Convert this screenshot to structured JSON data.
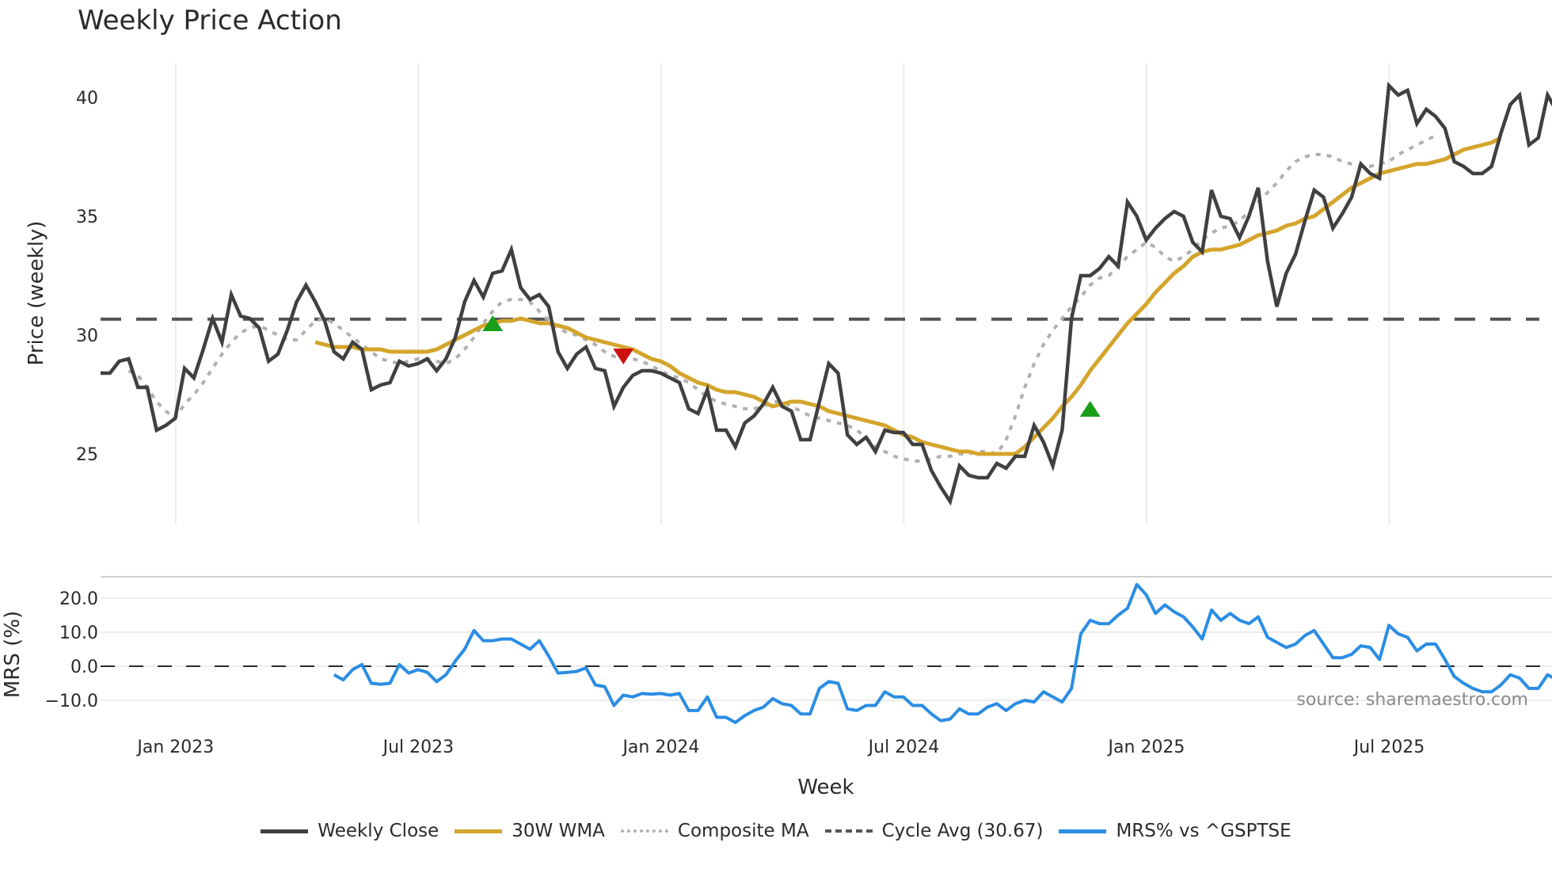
{
  "title": "Weekly Price Action",
  "colors": {
    "weekly_close": "#404040",
    "wma": "#d4a52c",
    "composite": "#b0b0b0",
    "cycle_avg": "#555555",
    "mrs": "#2b8de3",
    "buy_marker": "#1a9e1a",
    "sell_marker": "#cc1111",
    "grid": "#ececec"
  },
  "price_panel": {
    "ylabel": "Price (weekly)",
    "yticks": [
      "25",
      "30",
      "35",
      "40"
    ]
  },
  "mrs_panel": {
    "ylabel": "MRS (%)",
    "yticks": [
      "-10.0",
      "0.0",
      "10.0",
      "20.0"
    ]
  },
  "xaxis": {
    "label": "Week",
    "ticks": [
      "Jan 2023",
      "Jul 2023",
      "Jan 2024",
      "Jul 2024",
      "Jan 2025",
      "Jul 2025"
    ]
  },
  "source_text": "source: sharemaestro.com",
  "legend": {
    "weekly_close": "Weekly Close",
    "wma": "30W WMA",
    "composite": "Composite MA",
    "cycle_avg": "Cycle Avg (30.67)",
    "mrs": "MRS% vs ^GSPTSE"
  },
  "chart_data": [
    {
      "type": "line",
      "title": "Weekly Price Action",
      "xlabel": "Week",
      "ylabel": "Price (weekly)",
      "ylim": [
        22.0,
        41.4
      ],
      "x_ticks": [
        "Jan 2023",
        "Jul 2023",
        "Jan 2024",
        "Jul 2024",
        "Jan 2025",
        "Jul 2025"
      ],
      "x_start_week_index_of_jan2023": 8,
      "grid": true,
      "legend_position": "bottom",
      "series": [
        {
          "name": "Weekly Close",
          "start_index": 0,
          "values": [
            28.4,
            28.4,
            28.9,
            29.0,
            27.8,
            27.8,
            26.0,
            26.2,
            26.5,
            28.6,
            28.2,
            29.4,
            30.7,
            29.7,
            31.7,
            30.8,
            30.7,
            30.3,
            28.9,
            29.2,
            30.2,
            31.4,
            32.1,
            31.4,
            30.6,
            29.3,
            29.0,
            29.7,
            29.4,
            27.7,
            27.9,
            28.0,
            28.9,
            28.7,
            28.8,
            29.0,
            28.5,
            29.0,
            29.9,
            31.4,
            32.3,
            31.6,
            32.6,
            32.7,
            33.6,
            32.0,
            31.5,
            31.7,
            31.2,
            29.3,
            28.6,
            29.2,
            29.5,
            28.6,
            28.5,
            27.0,
            27.8,
            28.3,
            28.5,
            28.5,
            28.4,
            28.2,
            28.0,
            26.9,
            26.7,
            27.7,
            26.0,
            26.0,
            25.3,
            26.3,
            26.6,
            27.1,
            27.8,
            27.0,
            26.8,
            25.6,
            25.6,
            27.2,
            28.8,
            28.4,
            25.8,
            25.4,
            25.7,
            25.1,
            26.0,
            25.9,
            25.9,
            25.4,
            25.4,
            24.3,
            23.6,
            23.0,
            24.5,
            24.1,
            24.0,
            24.0,
            24.6,
            24.4,
            24.9,
            24.9,
            26.2,
            25.5,
            24.5,
            26.0,
            30.7,
            32.5,
            32.5,
            32.8,
            33.3,
            32.9,
            35.6,
            35.0,
            34.0,
            34.5,
            34.9,
            35.2,
            35.0,
            33.9,
            33.5,
            36.1,
            35.0,
            34.9,
            34.1,
            35.0,
            36.2,
            33.1,
            31.2,
            32.6,
            33.4,
            34.8,
            36.1,
            35.8,
            34.5,
            35.1,
            35.8,
            37.2,
            36.8,
            36.6,
            40.5,
            40.1,
            40.3,
            38.9,
            39.5,
            39.2,
            38.7,
            37.3,
            37.1,
            36.8,
            36.8,
            37.1,
            38.5,
            39.7,
            40.1,
            38.0,
            38.3,
            40.1,
            39.4
          ]
        },
        {
          "name": "30W WMA",
          "start_index": 23,
          "values": [
            29.7,
            29.6,
            29.5,
            29.5,
            29.5,
            29.4,
            29.4,
            29.4,
            29.3,
            29.3,
            29.3,
            29.3,
            29.3,
            29.4,
            29.6,
            29.8,
            30.0,
            30.2,
            30.4,
            30.5,
            30.6,
            30.6,
            30.7,
            30.6,
            30.5,
            30.5,
            30.4,
            30.3,
            30.1,
            29.9,
            29.8,
            29.7,
            29.6,
            29.5,
            29.4,
            29.2,
            29.0,
            28.9,
            28.7,
            28.4,
            28.2,
            28.0,
            27.9,
            27.7,
            27.6,
            27.6,
            27.5,
            27.4,
            27.2,
            27.0,
            27.1,
            27.2,
            27.2,
            27.1,
            27.0,
            26.8,
            26.7,
            26.6,
            26.5,
            26.4,
            26.3,
            26.2,
            26.0,
            25.8,
            25.7,
            25.5,
            25.4,
            25.3,
            25.2,
            25.1,
            25.1,
            25.0,
            25.0,
            25.0,
            25.0,
            25.0,
            25.3,
            25.7,
            26.1,
            26.5,
            27.0,
            27.4,
            27.9,
            28.5,
            29.0,
            29.5,
            30.0,
            30.5,
            30.9,
            31.3,
            31.8,
            32.2,
            32.6,
            32.9,
            33.3,
            33.5,
            33.6,
            33.6,
            33.7,
            33.8,
            34.0,
            34.2,
            34.3,
            34.4,
            34.6,
            34.7,
            34.9,
            35.0,
            35.3,
            35.6,
            35.9,
            36.2,
            36.4,
            36.6,
            36.8,
            36.9,
            37.0,
            37.1,
            37.2,
            37.2,
            37.3,
            37.4,
            37.6,
            37.8,
            37.9,
            38.0,
            38.1,
            38.3
          ]
        },
        {
          "name": "Composite MA",
          "start_index": 3,
          "values": [
            28.5,
            28.3,
            27.8,
            27.2,
            26.8,
            26.5,
            27.1,
            27.5,
            28.0,
            28.6,
            29.2,
            29.7,
            30.1,
            30.3,
            30.4,
            30.2,
            30.0,
            29.8,
            29.8,
            30.2,
            30.6,
            30.7,
            30.5,
            30.2,
            29.9,
            29.6,
            29.3,
            29.0,
            28.9,
            28.8,
            28.9,
            29.0,
            29.0,
            28.9,
            28.8,
            29.0,
            29.4,
            29.9,
            30.5,
            31.0,
            31.4,
            31.5,
            31.5,
            31.4,
            31.0,
            30.6,
            30.3,
            30.1,
            30.0,
            29.8,
            29.6,
            29.3,
            29.1,
            29.0,
            29.0,
            28.9,
            28.7,
            28.5,
            28.3,
            28.2,
            28.0,
            27.7,
            27.4,
            27.2,
            27.1,
            27.0,
            26.9,
            26.9,
            27.0,
            27.2,
            27.2,
            27.0,
            26.8,
            26.6,
            26.5,
            26.4,
            26.3,
            26.2,
            26.0,
            25.7,
            25.3,
            25.1,
            24.9,
            24.8,
            24.7,
            24.7,
            24.8,
            24.9,
            24.9,
            25.0,
            25.0,
            25.1,
            25.1,
            25.0,
            25.6,
            26.6,
            27.8,
            28.8,
            29.6,
            30.2,
            30.7,
            31.2,
            31.6,
            32.1,
            32.4,
            32.5,
            32.9,
            33.3,
            33.6,
            33.9,
            33.7,
            33.3,
            33.1,
            33.3,
            33.6,
            34.0,
            34.3,
            34.5,
            34.6,
            34.8,
            35.2,
            35.6,
            36.0,
            36.4,
            36.9,
            37.3,
            37.5,
            37.6,
            37.6,
            37.5,
            37.3,
            37.2,
            37.1,
            37.1,
            37.2,
            37.3,
            37.6,
            37.8,
            38.0,
            38.2,
            38.4
          ]
        },
        {
          "name": "Cycle Avg (30.67)",
          "constant": 30.67
        }
      ],
      "markers": [
        {
          "type": "buy",
          "shape": "triangle-up",
          "week_index": 42,
          "value": 30.5
        },
        {
          "type": "sell",
          "shape": "triangle-down",
          "week_index": 56,
          "value": 29.1
        },
        {
          "type": "buy",
          "shape": "triangle-up",
          "week_index": 106,
          "value": 26.9
        }
      ]
    },
    {
      "type": "line",
      "title": "",
      "xlabel": "Week",
      "ylabel": "MRS (%)",
      "ylim": [
        -15.0,
        26.0
      ],
      "grid": true,
      "series": [
        {
          "name": "MRS% vs ^GSPTSE",
          "start_index": 25,
          "values": [
            -2.5,
            -4.0,
            -1.0,
            0.5,
            -5.0,
            -5.3,
            -5.0,
            0.5,
            -2.0,
            -1.0,
            -1.8,
            -4.5,
            -2.5,
            1.5,
            5.0,
            10.5,
            7.5,
            7.5,
            8.0,
            8.0,
            6.5,
            5.0,
            7.5,
            3.0,
            -2.0,
            -1.8,
            -1.5,
            -0.5,
            -5.5,
            -6.0,
            -11.5,
            -8.5,
            -9.0,
            -8.0,
            -8.2,
            -8.0,
            -8.5,
            -8.0,
            -13.0,
            -13.0,
            -9.0,
            -15.0,
            -15.0,
            -16.5,
            -14.5,
            -13.0,
            -12.0,
            -9.5,
            -11.0,
            -11.5,
            -14.0,
            -14.0,
            -6.5,
            -4.5,
            -5.0,
            -12.5,
            -13.0,
            -11.5,
            -11.5,
            -7.5,
            -9.0,
            -9.0,
            -11.5,
            -11.5,
            -14.0,
            -16.0,
            -15.5,
            -12.5,
            -14.0,
            -14.0,
            -12.0,
            -11.0,
            -13.0,
            -11.0,
            -10.0,
            -10.5,
            -7.5,
            -9.0,
            -10.5,
            -6.5,
            9.5,
            13.5,
            12.5,
            12.5,
            15.0,
            17.0,
            24.0,
            21.0,
            15.5,
            18.0,
            16.0,
            14.5,
            11.5,
            8.0,
            16.5,
            13.5,
            15.5,
            13.5,
            12.5,
            14.5,
            8.5,
            7.0,
            5.5,
            6.5,
            9.0,
            10.5,
            6.5,
            2.5,
            2.5,
            3.5,
            6.0,
            5.5,
            2.0,
            12.0,
            9.5,
            8.5,
            4.5,
            6.5,
            6.5,
            2.0,
            -3.0,
            -5.0,
            -6.5,
            -7.5,
            -7.5,
            -5.5,
            -2.5,
            -3.5,
            -6.5,
            -6.5,
            -2.5,
            -4.0
          ]
        },
        {
          "name": "Zero line",
          "constant": 0.0
        }
      ]
    }
  ]
}
